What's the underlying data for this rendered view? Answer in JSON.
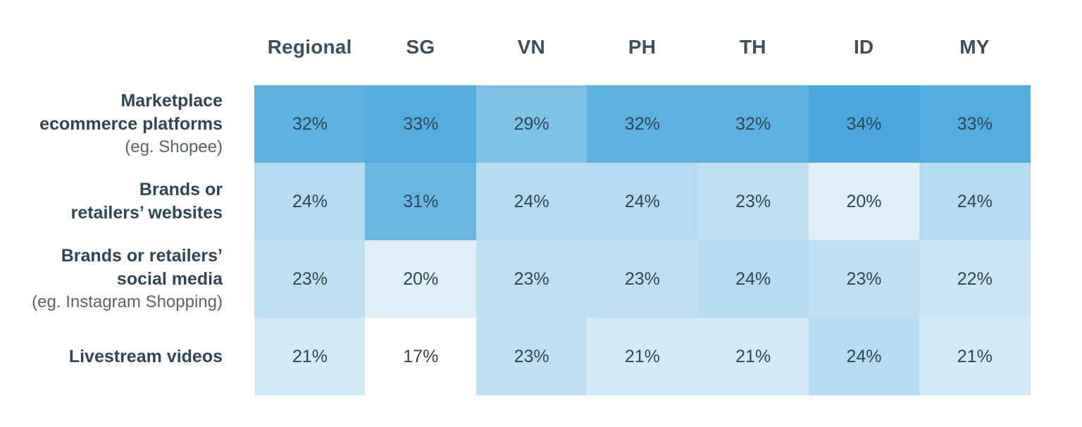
{
  "chart_data": {
    "type": "heatmap",
    "columns": [
      "Regional",
      "SG",
      "VN",
      "PH",
      "TH",
      "ID",
      "MY"
    ],
    "rows": [
      {
        "label": "Marketplace\necommerce platforms",
        "sublabel": "(eg. Shopee)"
      },
      {
        "label": "Brands or\nretailers’ websites",
        "sublabel": ""
      },
      {
        "label": "Brands or retailers’\nsocial media",
        "sublabel": "(eg. Instagram Shopping)"
      },
      {
        "label": "Livestream videos",
        "sublabel": ""
      }
    ],
    "values": [
      [
        32,
        33,
        29,
        32,
        32,
        34,
        33
      ],
      [
        24,
        31,
        24,
        24,
        23,
        20,
        24
      ],
      [
        23,
        20,
        23,
        23,
        24,
        23,
        22
      ],
      [
        21,
        17,
        23,
        21,
        21,
        24,
        21
      ]
    ],
    "display": [
      [
        "32%",
        "33%",
        "29%",
        "32%",
        "32%",
        "34%",
        "33%"
      ],
      [
        "24%",
        "31%",
        "24%",
        "24%",
        "23%",
        "20%",
        "24%"
      ],
      [
        "23%",
        "20%",
        "23%",
        "23%",
        "24%",
        "23%",
        "22%"
      ],
      [
        "21%",
        "17%",
        "23%",
        "21%",
        "21%",
        "24%",
        "21%"
      ]
    ],
    "unit": "%",
    "color_scale": {
      "low": "#ffffff",
      "high": "#4aa8dc",
      "min": 17,
      "max": 34
    }
  }
}
